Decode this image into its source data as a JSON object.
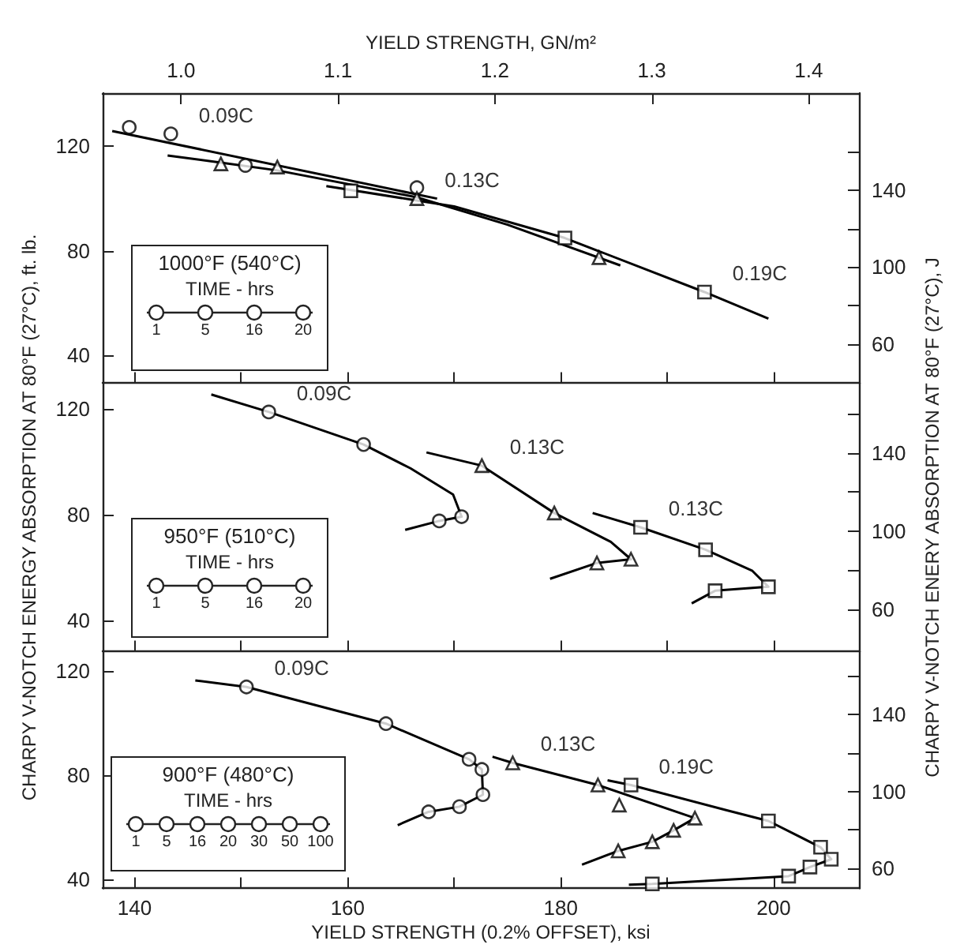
{
  "chart_data": [
    {
      "type": "line",
      "title": "1000°F (540°C)",
      "legend_title": "TIME - hrs",
      "annotations": [
        "1",
        "5",
        "16",
        "20"
      ],
      "x2label": "YIELD STRENGTH, GN/m²",
      "tick_labels": "y",
      "xlim": [
        137,
        208
      ],
      "xticks": [
        140,
        {
          "value": 150,
          "label": null
        },
        160,
        {
          "value": 170,
          "label": null
        },
        180,
        {
          "value": 190,
          "label": null
        },
        200
      ],
      "x2lim": [
        0.95,
        1.432
      ],
      "x2ticks": [
        {
          "value": 1,
          "label": "1.0"
        },
        1.1,
        1.2,
        1.3,
        1.4
      ],
      "ylim": [
        29.3,
        140.4
      ],
      "yticks": [
        40,
        80,
        120
      ],
      "y2lim": [
        39.7,
        190.4
      ],
      "y2ticks": [
        60,
        {
          "value": 80,
          "label": null
        },
        100,
        {
          "value": 120,
          "label": null
        },
        140,
        {
          "value": 160,
          "label": null
        }
      ],
      "series": [
        {
          "type": "line",
          "color": "#000000",
          "marker": "none",
          "x": [
            137.9,
            168.4
          ],
          "values": [
            125.9,
            100
          ]
        },
        {
          "type": "scatter",
          "name": "0.09C",
          "color": "#000000",
          "marker": "circle",
          "x": [
            143.4,
            139.5,
            150.4,
            166.5
          ],
          "values": [
            124.8,
            127.3,
            112.7,
            104.2
          ]
        },
        {
          "type": "line",
          "color": "#000000",
          "marker": "none",
          "x": [
            143.1,
            148.1,
            153.4,
            166.5,
            175,
            185.6
          ],
          "values": [
            116.5,
            113.8,
            110.8,
            100.5,
            90,
            74.4
          ]
        },
        {
          "type": "scatter",
          "name": "0.13C",
          "color": "#000000",
          "marker": "triangle",
          "x": [
            166.5,
            148.1,
            153.4,
            183.6
          ],
          "values": [
            100,
            113.3,
            112.1,
            77.4
          ]
        },
        {
          "type": "line",
          "color": "#000000",
          "marker": "none",
          "x": [
            158,
            170,
            180.4,
            193.5,
            199.5
          ],
          "values": [
            104.8,
            97,
            84.9,
            64.2,
            54
          ]
        },
        {
          "type": "scatter",
          "name": "0.19C",
          "color": "#000000",
          "marker": "square",
          "x": [
            193.5,
            180.4,
            160.3
          ],
          "values": [
            64.2,
            84.9,
            103.0
          ]
        }
      ]
    },
    {
      "type": "line",
      "title": "950°F (510°C)",
      "legend_title": "TIME - hrs",
      "annotations": [
        "1",
        "5",
        "16",
        "20"
      ],
      "ylabel": "CHARPY V-NOTCH ENERGY ABSORPTION AT 80°F (27°C), ft. lb.",
      "y2label": "CHARPY V-NOTCH ENERY ABSORPTION AT 80°F (27°C), J",
      "tick_labels": "y",
      "xlim": [
        137,
        208
      ],
      "xticks": [
        140,
        {
          "value": 150,
          "label": null
        },
        160,
        {
          "value": 170,
          "label": null
        },
        180,
        {
          "value": 190,
          "label": null
        },
        200
      ],
      "ylim": [
        28.2,
        129.7
      ],
      "yticks": [
        40,
        80,
        120
      ],
      "y2lim": [
        38.2,
        175.8
      ],
      "y2ticks": [
        60,
        {
          "value": 80,
          "label": null
        },
        100,
        {
          "value": 120,
          "label": null
        },
        140,
        {
          "value": 160,
          "label": null
        }
      ],
      "series": [
        {
          "type": "line",
          "color": "#000000",
          "marker": "none",
          "x": [
            147.2,
            152.6,
            161.5,
            165.9,
            169.9,
            170.7,
            168.6,
            165.4
          ],
          "values": [
            125.4,
            118.8,
            106.5,
            97.5,
            87.6,
            79.2,
            77.6,
            74.2
          ]
        },
        {
          "type": "scatter",
          "name": "0.09C",
          "color": "#000000",
          "marker": "circle",
          "x": [
            152.6,
            161.5,
            170.7,
            168.6
          ],
          "values": [
            118.8,
            106.5,
            79.2,
            77.6
          ]
        },
        {
          "type": "line",
          "color": "#000000",
          "marker": "none",
          "x": [
            167.4,
            172.6,
            179.4,
            184.7,
            186.6,
            183.4,
            179.0
          ],
          "values": [
            103.5,
            98.5,
            80.6,
            69.7,
            63.1,
            61.7,
            55.7
          ]
        },
        {
          "type": "scatter",
          "name": "0.13C",
          "color": "#000000",
          "marker": "triangle",
          "x": [
            172.6,
            179.4,
            186.6,
            183.4
          ],
          "values": [
            98.5,
            80.6,
            63.1,
            61.7
          ]
        },
        {
          "type": "line",
          "color": "#000000",
          "marker": "none",
          "x": [
            183.0,
            187.5,
            193.6,
            198.0,
            199.5,
            194.5,
            192.3
          ],
          "values": [
            80.6,
            75.2,
            66.7,
            58.7,
            52.7,
            51.2,
            46.4
          ]
        },
        {
          "type": "scatter",
          "name": "0.13C",
          "color": "#000000",
          "marker": "square",
          "x": [
            187.5,
            193.6,
            199.5,
            194.5
          ],
          "values": [
            75.2,
            66.7,
            52.7,
            51.2
          ]
        }
      ]
    },
    {
      "type": "line",
      "title": "900°F (480°C)",
      "legend_title": "TIME - hrs",
      "annotations": [
        "1",
        "5",
        "16",
        "20",
        "30",
        "50",
        "100"
      ],
      "xlabel": "YIELD STRENGTH (0.2% OFFSET), ksi",
      "xlim": [
        137,
        208
      ],
      "xticks": [
        140,
        {
          "value": 150,
          "label": null
        },
        160,
        {
          "value": 170,
          "label": null
        },
        180,
        {
          "value": 190,
          "label": null
        },
        200
      ],
      "ylim": [
        36.5,
        127.5
      ],
      "yticks": [
        40,
        80,
        120
      ],
      "y2lim": [
        49.5,
        172.9
      ],
      "y2ticks": [
        60,
        {
          "value": 80,
          "label": null
        },
        100,
        {
          "value": 120,
          "label": null
        },
        140,
        {
          "value": 160,
          "label": null
        }
      ],
      "series": [
        {
          "type": "line",
          "color": "#000000",
          "marker": "none",
          "x": [
            145.7,
            150.5,
            163.6,
            171.4,
            172.6,
            172.7,
            170.5,
            167.6,
            164.7
          ],
          "values": [
            116.4,
            113.9,
            99.8,
            86.1,
            82.2,
            72.5,
            67.9,
            65.9,
            60.8
          ]
        },
        {
          "type": "scatter",
          "name": "0.09C",
          "color": "#000000",
          "marker": "circle",
          "x": [
            150.5,
            163.6,
            171.4,
            172.6,
            172.7,
            170.5,
            167.6
          ],
          "values": [
            113.9,
            99.8,
            86.1,
            82.2,
            72.5,
            67.9,
            65.9
          ]
        },
        {
          "type": "line",
          "color": "#000000",
          "marker": "none",
          "x": [
            173.6,
            175.5,
            183.5,
            192.6,
            190.6,
            188.6,
            185.4,
            182.0
          ],
          "values": [
            87.1,
            84.7,
            76.2,
            63.5,
            58.8,
            54.4,
            50.9,
            45.6
          ]
        },
        {
          "type": "scatter",
          "name": "0.13C",
          "color": "#000000",
          "marker": "triangle",
          "x": [
            175.5,
            183.5,
            185.5,
            192.6,
            190.6,
            188.6,
            185.4
          ],
          "values": [
            84.7,
            76.2,
            68.5,
            63.5,
            58.8,
            54.4,
            50.9
          ]
        },
        {
          "type": "line",
          "color": "#000000",
          "marker": "none",
          "x": [
            184.4,
            186.6,
            195.6,
            199.5,
            204.4,
            205.4,
            203.4,
            201.4,
            188.6,
            186.4
          ],
          "values": [
            78.0,
            76.2,
            66.5,
            62.4,
            52.3,
            47.7,
            44.7,
            41.2,
            38.2,
            37.9
          ]
        },
        {
          "type": "scatter",
          "name": "0.19C",
          "color": "#000000",
          "marker": "square",
          "x": [
            186.6,
            199.5,
            204.4,
            205.4,
            203.4,
            201.4,
            188.6
          ],
          "values": [
            76.2,
            62.4,
            52.3,
            47.7,
            44.7,
            41.2,
            38.2
          ]
        }
      ]
    }
  ]
}
